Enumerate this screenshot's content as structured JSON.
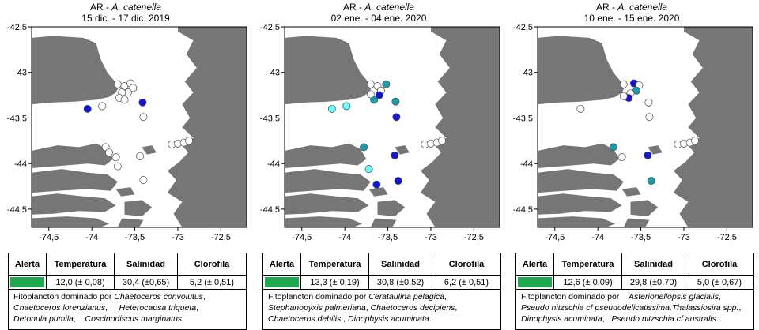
{
  "map_style": {
    "land": "#767676",
    "sea": "#ffffff",
    "axis": "#000000"
  },
  "axes": {
    "lon_range": [
      -74.7,
      -72.2
    ],
    "lat_range": [
      -44.7,
      -42.5
    ],
    "lon_ticks": [
      {
        "v": -74.5,
        "label": "-74,5"
      },
      {
        "v": -74.0,
        "label": "-74"
      },
      {
        "v": -73.5,
        "label": "-73,5"
      },
      {
        "v": -73.0,
        "label": "-73"
      },
      {
        "v": -72.5,
        "label": "-72,5"
      }
    ],
    "lat_ticks": [
      {
        "v": -42.5,
        "label": "-42,5"
      },
      {
        "v": -43.0,
        "label": "-43"
      },
      {
        "v": -43.5,
        "label": "-43,5"
      },
      {
        "v": -44.0,
        "label": "-44"
      },
      {
        "v": -44.5,
        "label": "-44,5"
      }
    ]
  },
  "table_headers": {
    "alert": "Alerta",
    "temp": "Temperatura",
    "sal": "Salinidad",
    "clo": "Clorofila"
  },
  "desc_prefix": "Fitoplancton dominado por",
  "color_legend": {
    "none": "#ffffff",
    "low": "#66ffff",
    "medium": "#1e9aaf",
    "high": "#1515d6"
  },
  "panels": [
    {
      "title_prefix": "AR - ",
      "title_species": "A. catenella",
      "title_dates": "15 dic. - 17 dic. 2019",
      "alert_color": "#1fa94e",
      "temperature": "12,0 (± 0,08)",
      "salinity": "30,4 (±0,65)",
      "chlorophyll": "5,2 (± 0,51)",
      "desc_lines": [
        {
          "a": "Chaetoceros convolutus",
          "b": ","
        },
        {
          "a": "Chaetoceros lorenzianus",
          "b": ",",
          "c": "Heterocapsa triqueta",
          "d": ","
        },
        {
          "a": "Detonula pumila",
          "b": ",",
          "c": "Coscinodiscus marginatus",
          "d": "."
        }
      ],
      "stations": [
        {
          "lon": -74.05,
          "lat": -43.4,
          "c": "high"
        },
        {
          "lon": -73.88,
          "lat": -43.37,
          "c": "none"
        },
        {
          "lon": -73.7,
          "lat": -43.13,
          "c": "none"
        },
        {
          "lon": -73.62,
          "lat": -43.15,
          "c": "none"
        },
        {
          "lon": -73.55,
          "lat": -43.12,
          "c": "none"
        },
        {
          "lon": -73.52,
          "lat": -43.17,
          "c": "none"
        },
        {
          "lon": -73.58,
          "lat": -43.22,
          "c": "none"
        },
        {
          "lon": -73.65,
          "lat": -43.22,
          "c": "none"
        },
        {
          "lon": -73.68,
          "lat": -43.28,
          "c": "none"
        },
        {
          "lon": -73.62,
          "lat": -43.3,
          "c": "none"
        },
        {
          "lon": -73.41,
          "lat": -43.33,
          "c": "high"
        },
        {
          "lon": -73.4,
          "lat": -43.49,
          "c": "none"
        },
        {
          "lon": -73.84,
          "lat": -43.82,
          "c": "none"
        },
        {
          "lon": -73.8,
          "lat": -43.88,
          "c": "none"
        },
        {
          "lon": -73.72,
          "lat": -43.93,
          "c": "none"
        },
        {
          "lon": -73.7,
          "lat": -44.03,
          "c": "none"
        },
        {
          "lon": -73.44,
          "lat": -43.92,
          "c": "none"
        },
        {
          "lon": -73.4,
          "lat": -44.18,
          "c": "none"
        },
        {
          "lon": -73.07,
          "lat": -43.79,
          "c": "none"
        },
        {
          "lon": -73.0,
          "lat": -43.78,
          "c": "none"
        },
        {
          "lon": -72.93,
          "lat": -43.77,
          "c": "none"
        },
        {
          "lon": -72.87,
          "lat": -43.75,
          "c": "none"
        }
      ]
    },
    {
      "title_prefix": "AR - ",
      "title_species": "A. catenella",
      "title_dates": "02 ene. - 04 ene. 2020",
      "alert_color": "#1fa94e",
      "temperature": "13,3 (± 0,19)",
      "salinity": "30,8 (±0,52)",
      "chlorophyll": "6,2 (± 0,51)",
      "desc_lines": [
        {
          "a": "Cerataulina pelagica",
          "b": ","
        },
        {
          "a": "Stephanopyxis palmeriana",
          "b": ",",
          "c": "Chaetoceros decipiens",
          "d": ","
        },
        {
          "a": "Chaetoceros debilis",
          "b": " ,",
          "c": "Dinophysis acuminata",
          "d": "."
        }
      ],
      "stations": [
        {
          "lon": -74.15,
          "lat": -43.4,
          "c": "low"
        },
        {
          "lon": -73.98,
          "lat": -43.37,
          "c": "low"
        },
        {
          "lon": -73.7,
          "lat": -43.13,
          "c": "none"
        },
        {
          "lon": -73.62,
          "lat": -43.15,
          "c": "none"
        },
        {
          "lon": -73.52,
          "lat": -43.13,
          "c": "medium"
        },
        {
          "lon": -73.58,
          "lat": -43.2,
          "c": "none"
        },
        {
          "lon": -73.6,
          "lat": -43.25,
          "c": "high"
        },
        {
          "lon": -73.66,
          "lat": -43.3,
          "c": "medium"
        },
        {
          "lon": -73.7,
          "lat": -43.24,
          "c": "none"
        },
        {
          "lon": -73.41,
          "lat": -43.32,
          "c": "medium"
        },
        {
          "lon": -73.4,
          "lat": -43.49,
          "c": "high"
        },
        {
          "lon": -73.78,
          "lat": -43.82,
          "c": "medium"
        },
        {
          "lon": -73.72,
          "lat": -44.06,
          "c": "low"
        },
        {
          "lon": -73.42,
          "lat": -43.91,
          "c": "high"
        },
        {
          "lon": -73.63,
          "lat": -44.23,
          "c": "high"
        },
        {
          "lon": -73.38,
          "lat": -44.19,
          "c": "high"
        },
        {
          "lon": -73.07,
          "lat": -43.79,
          "c": "none"
        },
        {
          "lon": -73.0,
          "lat": -43.78,
          "c": "none"
        },
        {
          "lon": -72.93,
          "lat": -43.77,
          "c": "none"
        },
        {
          "lon": -72.87,
          "lat": -43.75,
          "c": "none"
        }
      ]
    },
    {
      "title_prefix": "AR - ",
      "title_species": "A. catenella",
      "title_dates": "10 ene. - 15 ene. 2020",
      "alert_color": "#1fa94e",
      "temperature": "12,6 (± 0,09)",
      "salinity": "29,8 (±0,70)",
      "chlorophyll": "5,0 (± 0,67)",
      "desc_lines": [
        {
          "a": "Asterionellopsis glacialis",
          "b": ","
        },
        {
          "a": "Pseudo nitzschia cf pseudodelicatissima,Thalassiosira spp.",
          "b": ","
        },
        {
          "a": "Dinophysis acuminata",
          "b": ",",
          "c": "Pseudo nitzschia cf australis",
          "d": "."
        }
      ],
      "stations": [
        {
          "lon": -74.2,
          "lat": -43.4,
          "c": "none"
        },
        {
          "lon": -73.7,
          "lat": -43.13,
          "c": "none"
        },
        {
          "lon": -73.58,
          "lat": -43.12,
          "c": "high"
        },
        {
          "lon": -73.52,
          "lat": -43.14,
          "c": "none"
        },
        {
          "lon": -73.55,
          "lat": -43.2,
          "c": "medium"
        },
        {
          "lon": -73.62,
          "lat": -43.23,
          "c": "none"
        },
        {
          "lon": -73.64,
          "lat": -43.28,
          "c": "high"
        },
        {
          "lon": -73.7,
          "lat": -43.26,
          "c": "none"
        },
        {
          "lon": -73.41,
          "lat": -43.33,
          "c": "none"
        },
        {
          "lon": -73.4,
          "lat": -43.49,
          "c": "none"
        },
        {
          "lon": -73.82,
          "lat": -43.82,
          "c": "medium"
        },
        {
          "lon": -73.72,
          "lat": -43.93,
          "c": "none"
        },
        {
          "lon": -73.42,
          "lat": -43.91,
          "c": "high"
        },
        {
          "lon": -73.38,
          "lat": -44.19,
          "c": "medium"
        },
        {
          "lon": -73.07,
          "lat": -43.79,
          "c": "none"
        },
        {
          "lon": -73.0,
          "lat": -43.78,
          "c": "none"
        },
        {
          "lon": -72.93,
          "lat": -43.77,
          "c": "none"
        },
        {
          "lon": -72.87,
          "lat": -43.75,
          "c": "none"
        }
      ]
    }
  ]
}
